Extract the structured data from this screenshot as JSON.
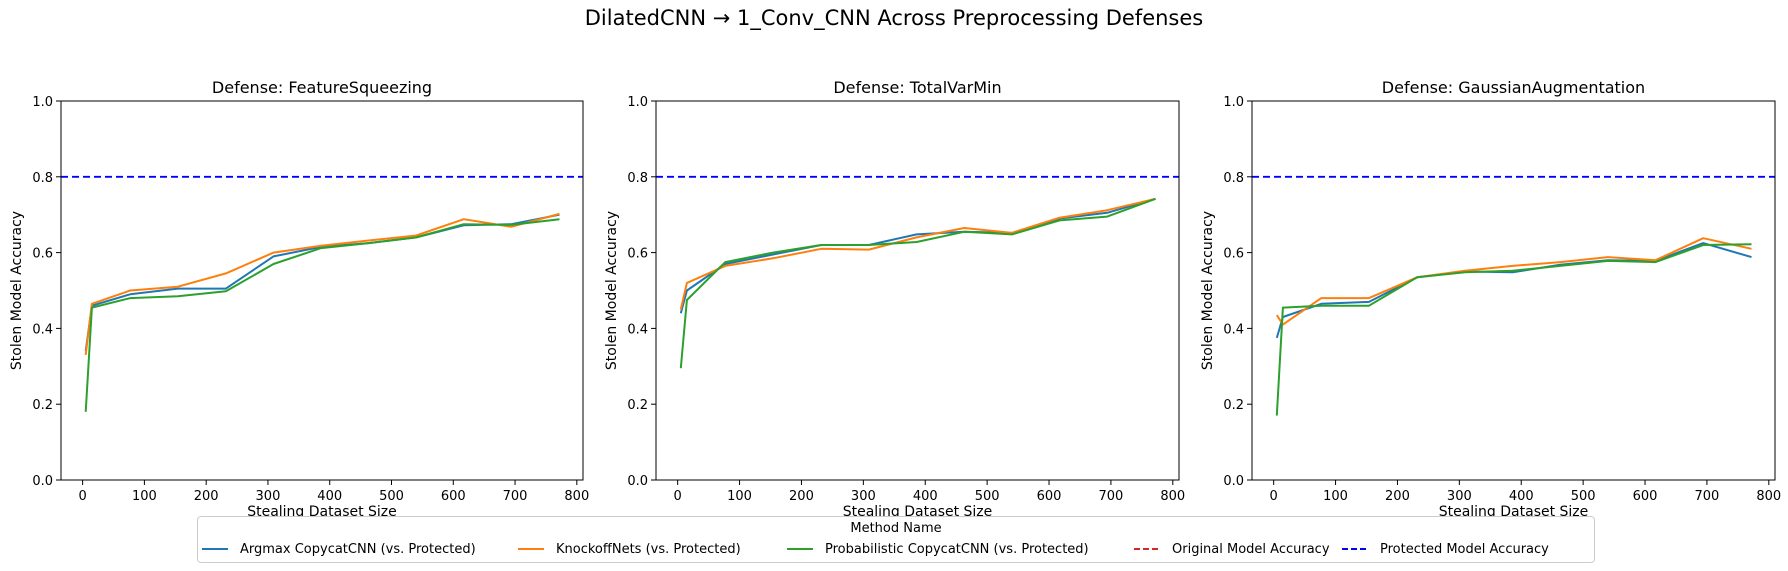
{
  "chart_data": {
    "suptitle": "DilatedCNN → 1_Conv_CNN Across Preprocessing Defenses",
    "legend": {
      "title": "Method Name",
      "placement": "bottom-center",
      "entries": [
        {
          "label": "Argmax CopycatCNN (vs. Protected)",
          "color": "#1f77b4",
          "style": "solid"
        },
        {
          "label": "KnockoffNets (vs. Protected)",
          "color": "#ff7f0e",
          "style": "solid"
        },
        {
          "label": "Probabilistic CopycatCNN (vs. Protected)",
          "color": "#2ca02c",
          "style": "solid"
        },
        {
          "label": "Original Model Accuracy",
          "color": "#d62728",
          "style": "dashed"
        },
        {
          "label": "Protected Model Accuracy",
          "color": "#0000ff",
          "style": "dashed"
        }
      ]
    },
    "panels": [
      {
        "type": "line",
        "title": "Defense: FeatureSqueezing",
        "xlabel": "Stealing Dataset Size",
        "ylabel": "Stolen Model Accuracy",
        "xlim": [
          -35,
          810
        ],
        "ylim": [
          0,
          1
        ],
        "xticks": [
          "0",
          "100",
          "200",
          "300",
          "400",
          "500",
          "600",
          "700",
          "800"
        ],
        "yticks": [
          "0.0",
          "0.2",
          "0.4",
          "0.6",
          "0.8",
          "1.0"
        ],
        "grid": false,
        "protected_accuracy": 0.8,
        "x": [
          5,
          15,
          77,
          154,
          232,
          309,
          386,
          463,
          540,
          617,
          694,
          772
        ],
        "series": [
          {
            "name": "Argmax CopycatCNN (vs. Protected)",
            "color": "#1f77b4",
            "values": [
              0.34,
              0.46,
              0.49,
              0.505,
              0.505,
              0.59,
              0.615,
              0.625,
              0.64,
              0.672,
              0.675,
              0.7
            ]
          },
          {
            "name": "KnockoffNets (vs. Protected)",
            "color": "#ff7f0e",
            "values": [
              0.33,
              0.465,
              0.5,
              0.51,
              0.545,
              0.6,
              0.618,
              0.632,
              0.645,
              0.688,
              0.668,
              0.702
            ]
          },
          {
            "name": "Probabilistic CopycatCNN (vs. Protected)",
            "color": "#2ca02c",
            "values": [
              0.18,
              0.455,
              0.48,
              0.485,
              0.498,
              0.57,
              0.612,
              0.625,
              0.64,
              0.675,
              0.673,
              0.688
            ]
          }
        ]
      },
      {
        "type": "line",
        "title": "Defense: TotalVarMin",
        "xlabel": "Stealing Dataset Size",
        "ylabel": "Stolen Model Accuracy",
        "xlim": [
          -35,
          810
        ],
        "ylim": [
          0,
          1
        ],
        "xticks": [
          "0",
          "100",
          "200",
          "300",
          "400",
          "500",
          "600",
          "700",
          "800"
        ],
        "yticks": [
          "0.0",
          "0.2",
          "0.4",
          "0.6",
          "0.8",
          "1.0"
        ],
        "grid": false,
        "protected_accuracy": 0.8,
        "x": [
          5,
          15,
          77,
          154,
          232,
          309,
          386,
          463,
          540,
          617,
          694,
          772
        ],
        "series": [
          {
            "name": "Argmax CopycatCNN (vs. Protected)",
            "color": "#1f77b4",
            "values": [
              0.44,
              0.5,
              0.57,
              0.595,
              0.62,
              0.62,
              0.648,
              0.655,
              0.652,
              0.69,
              0.705,
              0.742
            ]
          },
          {
            "name": "KnockoffNets (vs. Protected)",
            "color": "#ff7f0e",
            "values": [
              0.45,
              0.52,
              0.565,
              0.585,
              0.61,
              0.608,
              0.64,
              0.665,
              0.652,
              0.692,
              0.712,
              0.742
            ]
          },
          {
            "name": "Probabilistic CopycatCNN (vs. Protected)",
            "color": "#2ca02c",
            "values": [
              0.295,
              0.475,
              0.575,
              0.6,
              0.62,
              0.62,
              0.628,
              0.655,
              0.648,
              0.685,
              0.695,
              0.742
            ]
          }
        ]
      },
      {
        "type": "line",
        "title": "Defense: GaussianAugmentation",
        "xlabel": "Stealing Dataset Size",
        "ylabel": "Stolen Model Accuracy",
        "xlim": [
          -35,
          810
        ],
        "ylim": [
          0,
          1
        ],
        "xticks": [
          "0",
          "100",
          "200",
          "300",
          "400",
          "500",
          "600",
          "700",
          "800"
        ],
        "yticks": [
          "0.0",
          "0.2",
          "0.4",
          "0.6",
          "0.8",
          "1.0"
        ],
        "grid": false,
        "protected_accuracy": 0.8,
        "x": [
          5,
          15,
          77,
          154,
          232,
          309,
          386,
          463,
          540,
          617,
          694,
          772
        ],
        "series": [
          {
            "name": "Argmax CopycatCNN (vs. Protected)",
            "color": "#1f77b4",
            "values": [
              0.375,
              0.43,
              0.465,
              0.47,
              0.535,
              0.55,
              0.548,
              0.568,
              0.58,
              0.578,
              0.625,
              0.588
            ]
          },
          {
            "name": "KnockoffNets (vs. Protected)",
            "color": "#ff7f0e",
            "values": [
              0.435,
              0.41,
              0.48,
              0.48,
              0.535,
              0.552,
              0.565,
              0.575,
              0.588,
              0.58,
              0.638,
              0.61
            ]
          },
          {
            "name": "Probabilistic CopycatCNN (vs. Protected)",
            "color": "#2ca02c",
            "values": [
              0.17,
              0.455,
              0.46,
              0.46,
              0.535,
              0.548,
              0.552,
              0.565,
              0.578,
              0.575,
              0.62,
              0.622
            ]
          }
        ]
      }
    ]
  }
}
